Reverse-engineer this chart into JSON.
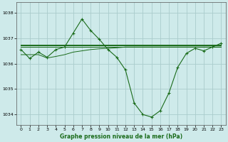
{
  "bg_color": "#ceeaea",
  "grid_color": "#aacccc",
  "line_color": "#1a6b1a",
  "title": "Graphe pression niveau de la mer (hPa)",
  "xlim": [
    -0.5,
    23.5
  ],
  "ylim": [
    1033.6,
    1038.4
  ],
  "yticks": [
    1034,
    1035,
    1036,
    1037,
    1038
  ],
  "xticks": [
    0,
    1,
    2,
    3,
    4,
    5,
    6,
    7,
    8,
    9,
    10,
    11,
    12,
    13,
    14,
    15,
    16,
    17,
    18,
    19,
    20,
    21,
    22,
    23
  ],
  "series": {
    "main": [
      1036.55,
      1036.2,
      1036.45,
      1036.25,
      1036.55,
      1036.65,
      1037.2,
      1037.75,
      1037.3,
      1036.95,
      1036.55,
      1036.25,
      1035.75,
      1034.45,
      1034.0,
      1033.9,
      1034.15,
      1034.85,
      1035.85,
      1036.4,
      1036.6,
      1036.5,
      1036.65,
      1036.8
    ],
    "flat1": [
      1036.65,
      1036.65,
      1036.65,
      1036.65,
      1036.65,
      1036.65,
      1036.65,
      1036.65,
      1036.65,
      1036.65,
      1036.65,
      1036.65,
      1036.65,
      1036.65,
      1036.65,
      1036.65,
      1036.65,
      1036.65,
      1036.65,
      1036.65,
      1036.65,
      1036.65,
      1036.65,
      1036.65
    ],
    "flat2": [
      1036.7,
      1036.7,
      1036.7,
      1036.7,
      1036.7,
      1036.7,
      1036.7,
      1036.7,
      1036.7,
      1036.7,
      1036.7,
      1036.7,
      1036.7,
      1036.7,
      1036.7,
      1036.7,
      1036.7,
      1036.7,
      1036.7,
      1036.7,
      1036.7,
      1036.7,
      1036.7,
      1036.7
    ],
    "flat3": [
      1036.75,
      1036.75,
      1036.75,
      1036.75,
      1036.75,
      1036.75,
      1036.75,
      1036.75,
      1036.75,
      1036.75,
      1036.75,
      1036.75,
      1036.75,
      1036.75,
      1036.75,
      1036.75,
      1036.75,
      1036.75,
      1036.75,
      1036.75,
      1036.75,
      1036.75,
      1036.75,
      1036.75
    ],
    "rising": [
      1036.35,
      1036.35,
      1036.35,
      1036.22,
      1036.28,
      1036.35,
      1036.45,
      1036.5,
      1036.55,
      1036.58,
      1036.6,
      1036.62,
      1036.65,
      1036.65,
      1036.65,
      1036.65,
      1036.65,
      1036.65,
      1036.65,
      1036.65,
      1036.65,
      1036.65,
      1036.65,
      1036.65
    ]
  }
}
